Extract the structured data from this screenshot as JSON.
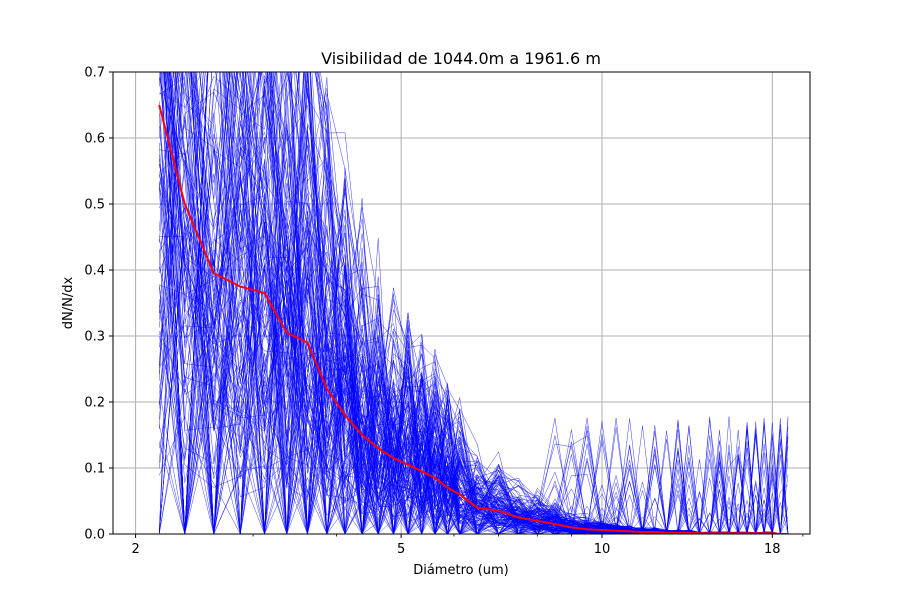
{
  "chart_data": {
    "type": "line",
    "title": "Visibilidad de 1044.0m a 1961.6 m",
    "xlabel": "Diámetro (um)",
    "ylabel": "dN/N/dx",
    "x_scale": "log",
    "xlim": [
      1.85,
      20.5
    ],
    "ylim": [
      0,
      0.7
    ],
    "x_ticks": [
      2,
      5,
      10,
      18
    ],
    "x_tick_labels": [
      "2",
      "5",
      "10",
      "18"
    ],
    "y_ticks": [
      0.0,
      0.1,
      0.2,
      0.3,
      0.4,
      0.5,
      0.6,
      0.7
    ],
    "y_tick_labels": [
      "0.0",
      "0.1",
      "0.2",
      "0.3",
      "0.4",
      "0.5",
      "0.6",
      "0.7"
    ],
    "grid": true,
    "x": [
      2.17,
      2.37,
      2.62,
      2.87,
      3.12,
      3.37,
      3.62,
      3.87,
      4.12,
      4.37,
      4.62,
      4.87,
      5.12,
      5.37,
      5.62,
      5.87,
      6.12,
      6.5,
      7.0,
      7.5,
      8.0,
      8.5,
      9.0,
      9.5,
      10.0,
      10.5,
      11.0,
      11.5,
      12.0,
      12.5,
      13.0,
      13.5,
      14.0,
      14.5,
      15.0,
      15.5,
      16.0,
      16.5,
      17.0,
      17.5,
      18.0,
      18.5,
      19.0
    ],
    "series": [
      {
        "color": "#ff0000",
        "values": [
          0.65,
          0.5,
          0.395,
          0.375,
          0.365,
          0.305,
          0.29,
          0.22,
          0.18,
          0.15,
          0.13,
          0.115,
          0.105,
          0.095,
          0.085,
          0.07,
          0.06,
          0.04,
          0.035,
          0.025,
          0.02,
          0.015,
          0.01,
          0.007,
          0.006,
          0.005,
          0.004,
          0.003,
          0.003,
          0.002,
          0.002,
          0.002,
          0.001,
          0.001,
          0.001,
          0.001,
          0.001,
          0.001,
          0.001,
          0.001,
          0.001,
          0.0,
          0.0
        ]
      },
      {
        "color": "#0000ff",
        "count": 160,
        "description": "individual size-distribution profiles (thin blue lines)"
      }
    ]
  }
}
